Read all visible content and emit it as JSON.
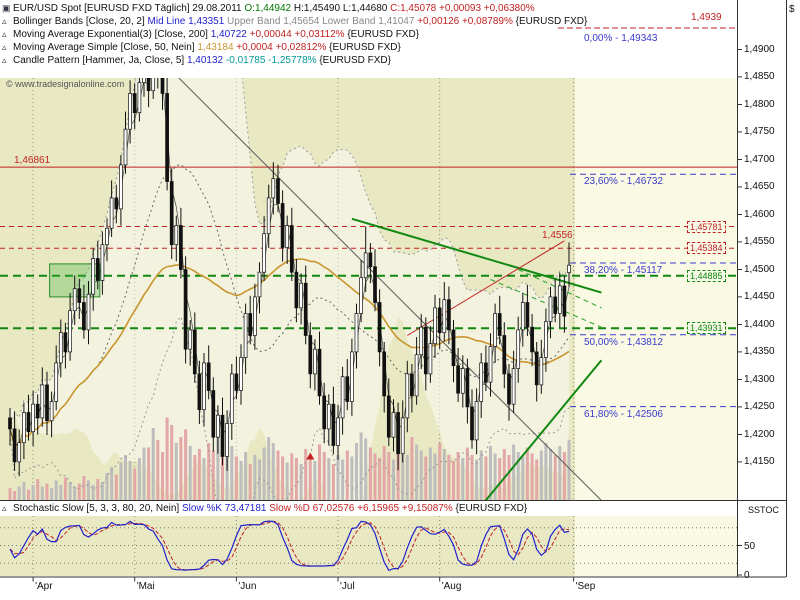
{
  "header": {
    "copyright": "© www.tradesignalonline.com",
    "legend_rows": [
      {
        "name": "instrument",
        "icon": "instrument-icon",
        "segments": [
          {
            "t": "EUR/USD Spot [EURUSD FXD Täglich] 29.08.2011 ",
            "c": "k"
          },
          {
            "t": "O:1,44942 ",
            "c": "g"
          },
          {
            "t": "H:1,45490 ",
            "c": "k"
          },
          {
            "t": "L:1,44680 ",
            "c": "k"
          },
          {
            "t": "C:1,45078 ",
            "c": "r"
          },
          {
            "t": "+0,00093 +0,06380%",
            "c": "r"
          }
        ]
      },
      {
        "name": "bollinger-bands",
        "icon": "indicator-icon",
        "segments": [
          {
            "t": "Bollinger Bands [Close, 20, 2] ",
            "c": "k"
          },
          {
            "t": "Mid Line 1,43351 ",
            "c": "b"
          },
          {
            "t": "Upper Band 1,45654 ",
            "c": "gy"
          },
          {
            "t": "Lower Band 1,41047 ",
            "c": "gy"
          },
          {
            "t": "+0,00126 +0,08789% ",
            "c": "r"
          },
          {
            "t": "{EURUSD FXD}",
            "c": "k"
          }
        ]
      },
      {
        "name": "ma-exponential",
        "icon": "indicator-icon",
        "segments": [
          {
            "t": "Moving Average Exponential(3) [Close, 200] ",
            "c": "k"
          },
          {
            "t": "1,40722 ",
            "c": "b"
          },
          {
            "t": "+0,00044 +0,03112% ",
            "c": "r"
          },
          {
            "t": "{EURUSD FXD}",
            "c": "k"
          }
        ]
      },
      {
        "name": "ma-simple",
        "icon": "indicator-icon",
        "segments": [
          {
            "t": "Moving Average Simple [Close, 50, Nein] ",
            "c": "k"
          },
          {
            "t": "1,43184 ",
            "c": "o"
          },
          {
            "t": "+0,0004 +0,02812% ",
            "c": "r"
          },
          {
            "t": "{EURUSD FXD}",
            "c": "k"
          }
        ]
      },
      {
        "name": "candle-pattern",
        "icon": "indicator-icon",
        "segments": [
          {
            "t": "Candle Pattern [Hammer, Ja, Close, 5] ",
            "c": "k"
          },
          {
            "t": "1,40132 ",
            "c": "b"
          },
          {
            "t": "-0,01785 -1,25778% ",
            "c": "t"
          },
          {
            "t": "{EURUSD FXD}",
            "c": "k"
          }
        ]
      }
    ],
    "stoch_legend": {
      "name": "stochastic",
      "icon": "indicator-icon",
      "segments": [
        {
          "t": "Stochastic Slow [5, 3, 3, 80, 20, Nein] ",
          "c": "k"
        },
        {
          "t": "Slow %K 73,47181 ",
          "c": "b"
        },
        {
          "t": "Slow %D 67,02576 ",
          "c": "r"
        },
        {
          "t": "+6,15965 +9,15087% ",
          "c": "r"
        },
        {
          "t": "{EURUSD FXD}",
          "c": "k"
        }
      ]
    }
  },
  "axes": {
    "currency_symbol": "$",
    "stoch_title": "SSTOC",
    "price_labels": [
      "1,4900",
      "1,4850",
      "1,4800",
      "1,4750",
      "1,4700",
      "1,4650",
      "1,4600",
      "1,4550",
      "1,4500",
      "1,4450",
      "1,4400",
      "1,4350",
      "1,4300",
      "1,4250",
      "1,4200",
      "1,4150"
    ],
    "stoch_labels": [
      {
        "t": "50",
        "v": 50
      },
      {
        "t": "0",
        "v": 0
      }
    ],
    "stoch_levels": [
      80,
      50,
      20
    ],
    "months": [
      {
        "label": "'Apr",
        "day": 5
      },
      {
        "label": "'Mai",
        "day": 27
      },
      {
        "label": "'Jun",
        "day": 49
      },
      {
        "label": "'Jul",
        "day": 71
      },
      {
        "label": "'Aug",
        "day": 93
      },
      {
        "label": "'Sep",
        "day": 122
      }
    ]
  },
  "levels": {
    "top": {
      "label": "1,4939",
      "price": 1.4939
    },
    "solid": {
      "label": "1,46861",
      "price": 1.46861
    },
    "dashed_red": [
      {
        "label": "1,45781",
        "price": 1.45781
      },
      {
        "label": "1,45384",
        "price": 1.45384
      }
    ],
    "dashed_green": [
      {
        "label": "1,44885",
        "price": 1.44885
      },
      {
        "label": "1,43931",
        "price": 1.43931
      }
    ],
    "floating": {
      "label": "1,4556",
      "price": 1.4556
    }
  },
  "fibonacci": [
    {
      "label": "0,00% - 1,49343",
      "price": 1.49343,
      "line": false
    },
    {
      "label": "23,60% - 1,46732",
      "price": 1.46732,
      "line": true
    },
    {
      "label": "38,20% - 1,45117",
      "price": 1.45117,
      "line": true
    },
    {
      "label": "50,00% - 1,43812",
      "price": 1.43812,
      "line": true
    },
    {
      "label": "61,80% - 1,42506",
      "price": 1.42506,
      "line": true
    }
  ],
  "colors": {
    "background": "#e8e8c3",
    "future_zone": "#f9f9e4",
    "up_candle": "#ffffff",
    "down_candle": "#111111",
    "candle_line": "#111111",
    "volume_up": "#bdbdbd",
    "volume_down": "#e3a7a7",
    "bollinger": "#9a9a9a",
    "bollinger_mid": "#666666",
    "sma50": "#c9952e",
    "ema": "#444444",
    "support": "#118811",
    "resistance": "#c22222",
    "fib": "#3a3acc",
    "stoch_k": "#2222cc",
    "stoch_d": "#c22222",
    "frame": "#333333"
  },
  "chart_data": {
    "type": "candlestick",
    "title": "EUR/USD Spot [EURUSD FXD Täglich]",
    "date": "29.08.2011",
    "ohlc_last": {
      "open": 1.44942,
      "high": 1.4549,
      "low": 1.4468,
      "close": 1.45078,
      "change": "+0,00093",
      "change_pct": "+0,06380%"
    },
    "y_axis": {
      "min": 1.415,
      "max": 1.4939
    },
    "candles": [
      [
        1.423,
        1.4248,
        1.418,
        1.421
      ],
      [
        1.421,
        1.4242,
        1.4134,
        1.415
      ],
      [
        1.415,
        1.4209,
        1.4124,
        1.4185
      ],
      [
        1.4185,
        1.4258,
        1.4155,
        1.424
      ],
      [
        1.424,
        1.4272,
        1.4189,
        1.4205
      ],
      [
        1.4205,
        1.4279,
        1.4179,
        1.4255
      ],
      [
        1.4255,
        1.4273,
        1.42,
        1.423
      ],
      [
        1.423,
        1.4322,
        1.4214,
        1.429
      ],
      [
        1.429,
        1.4314,
        1.4199,
        1.4225
      ],
      [
        1.4225,
        1.4278,
        1.4195,
        1.426
      ],
      [
        1.426,
        1.4362,
        1.4244,
        1.433
      ],
      [
        1.433,
        1.4409,
        1.4304,
        1.4385
      ],
      [
        1.4385,
        1.4403,
        1.432,
        1.435
      ],
      [
        1.435,
        1.4457,
        1.4334,
        1.4425
      ],
      [
        1.4425,
        1.4489,
        1.4399,
        1.4465
      ],
      [
        1.4465,
        1.4483,
        1.441,
        1.444
      ],
      [
        1.444,
        1.4472,
        1.4374,
        1.439
      ],
      [
        1.439,
        1.4479,
        1.4364,
        1.4455
      ],
      [
        1.4455,
        1.4538,
        1.4425,
        1.452
      ],
      [
        1.452,
        1.4552,
        1.4464,
        1.448
      ],
      [
        1.448,
        1.4569,
        1.4454,
        1.4545
      ],
      [
        1.4545,
        1.4593,
        1.4515,
        1.4575
      ],
      [
        1.4575,
        1.4662,
        1.4559,
        1.463
      ],
      [
        1.463,
        1.4654,
        1.4584,
        1.461
      ],
      [
        1.461,
        1.4708,
        1.458,
        1.469
      ],
      [
        1.469,
        1.4787,
        1.4674,
        1.4755
      ],
      [
        1.4755,
        1.4844,
        1.4729,
        1.482
      ],
      [
        1.482,
        1.4838,
        1.4755,
        1.4785
      ],
      [
        1.4785,
        1.4872,
        1.4769,
        1.484
      ],
      [
        1.484,
        1.4904,
        1.4814,
        1.488
      ],
      [
        1.488,
        1.4898,
        1.4795,
        1.4825
      ],
      [
        1.4825,
        1.4939,
        1.481,
        1.49
      ],
      [
        1.49,
        1.4924,
        1.4829,
        1.4855
      ],
      [
        1.4855,
        1.4873,
        1.479,
        1.482
      ],
      [
        1.482,
        1.4852,
        1.4644,
        1.466
      ],
      [
        1.466,
        1.4684,
        1.4519,
        1.4545
      ],
      [
        1.4545,
        1.4598,
        1.4515,
        1.458
      ],
      [
        1.458,
        1.4612,
        1.4484,
        1.45
      ],
      [
        1.45,
        1.4524,
        1.4329,
        1.4355
      ],
      [
        1.4355,
        1.4408,
        1.4325,
        1.439
      ],
      [
        1.439,
        1.4422,
        1.4294,
        1.431
      ],
      [
        1.431,
        1.4334,
        1.4219,
        1.4245
      ],
      [
        1.4245,
        1.4348,
        1.4215,
        1.433
      ],
      [
        1.433,
        1.4362,
        1.4264,
        1.428
      ],
      [
        1.428,
        1.4304,
        1.4169,
        1.4195
      ],
      [
        1.4195,
        1.4253,
        1.4165,
        1.4235
      ],
      [
        1.4235,
        1.4267,
        1.4144,
        1.416
      ],
      [
        1.416,
        1.4244,
        1.4134,
        1.422
      ],
      [
        1.422,
        1.4328,
        1.419,
        1.431
      ],
      [
        1.431,
        1.4342,
        1.4264,
        1.428
      ],
      [
        1.428,
        1.4364,
        1.4254,
        1.434
      ],
      [
        1.434,
        1.4438,
        1.431,
        1.442
      ],
      [
        1.442,
        1.4452,
        1.4364,
        1.438
      ],
      [
        1.438,
        1.4474,
        1.4354,
        1.445
      ],
      [
        1.445,
        1.4513,
        1.442,
        1.4495
      ],
      [
        1.4495,
        1.4597,
        1.4479,
        1.4565
      ],
      [
        1.4565,
        1.4654,
        1.4539,
        1.463
      ],
      [
        1.463,
        1.4695,
        1.46,
        1.4665
      ],
      [
        1.4665,
        1.469,
        1.4604,
        1.462
      ],
      [
        1.462,
        1.4644,
        1.4514,
        1.454
      ],
      [
        1.454,
        1.4598,
        1.451,
        1.458
      ],
      [
        1.458,
        1.4612,
        1.4479,
        1.4495
      ],
      [
        1.4495,
        1.4519,
        1.4404,
        1.443
      ],
      [
        1.443,
        1.4493,
        1.44,
        1.4475
      ],
      [
        1.4475,
        1.4507,
        1.4364,
        1.438
      ],
      [
        1.438,
        1.4404,
        1.4284,
        1.431
      ],
      [
        1.431,
        1.4373,
        1.428,
        1.4355
      ],
      [
        1.4355,
        1.4387,
        1.4254,
        1.427
      ],
      [
        1.427,
        1.4294,
        1.4184,
        1.421
      ],
      [
        1.421,
        1.4273,
        1.418,
        1.4255
      ],
      [
        1.4255,
        1.4287,
        1.4164,
        1.418
      ],
      [
        1.418,
        1.4254,
        1.4154,
        1.423
      ],
      [
        1.423,
        1.4323,
        1.42,
        1.4305
      ],
      [
        1.4305,
        1.4337,
        1.4244,
        1.426
      ],
      [
        1.426,
        1.4374,
        1.4234,
        1.435
      ],
      [
        1.435,
        1.4438,
        1.432,
        1.442
      ],
      [
        1.442,
        1.4517,
        1.4404,
        1.4485
      ],
      [
        1.4485,
        1.4578,
        1.4459,
        1.453
      ],
      [
        1.453,
        1.4548,
        1.4475,
        1.4505
      ],
      [
        1.4505,
        1.4537,
        1.4424,
        1.444
      ],
      [
        1.444,
        1.4464,
        1.4324,
        1.435
      ],
      [
        1.435,
        1.4368,
        1.424,
        1.427
      ],
      [
        1.427,
        1.4302,
        1.4179,
        1.4195
      ],
      [
        1.4195,
        1.4264,
        1.4169,
        1.424
      ],
      [
        1.424,
        1.4258,
        1.4135,
        1.4165
      ],
      [
        1.4165,
        1.4262,
        1.4149,
        1.423
      ],
      [
        1.423,
        1.4334,
        1.4204,
        1.431
      ],
      [
        1.431,
        1.4328,
        1.424,
        1.427
      ],
      [
        1.427,
        1.4377,
        1.4254,
        1.4345
      ],
      [
        1.4345,
        1.4419,
        1.4319,
        1.4395
      ],
      [
        1.4395,
        1.4413,
        1.428,
        1.431
      ],
      [
        1.431,
        1.4397,
        1.4294,
        1.4365
      ],
      [
        1.4365,
        1.4454,
        1.4339,
        1.443
      ],
      [
        1.443,
        1.4448,
        1.4355,
        1.4385
      ],
      [
        1.4385,
        1.4477,
        1.4369,
        1.4445
      ],
      [
        1.4445,
        1.4469,
        1.4364,
        1.439
      ],
      [
        1.439,
        1.4408,
        1.4295,
        1.4325
      ],
      [
        1.4325,
        1.4357,
        1.4259,
        1.4275
      ],
      [
        1.4275,
        1.4344,
        1.4249,
        1.432
      ],
      [
        1.432,
        1.4338,
        1.422,
        1.425
      ],
      [
        1.425,
        1.4282,
        1.4174,
        1.419
      ],
      [
        1.419,
        1.4284,
        1.4164,
        1.426
      ],
      [
        1.426,
        1.4348,
        1.423,
        1.433
      ],
      [
        1.433,
        1.4362,
        1.4279,
        1.4295
      ],
      [
        1.4295,
        1.4384,
        1.4269,
        1.436
      ],
      [
        1.436,
        1.4438,
        1.433,
        1.442
      ],
      [
        1.442,
        1.4452,
        1.4364,
        1.438
      ],
      [
        1.438,
        1.4404,
        1.4284,
        1.431
      ],
      [
        1.431,
        1.4328,
        1.4225,
        1.4255
      ],
      [
        1.4255,
        1.4352,
        1.4239,
        1.432
      ],
      [
        1.432,
        1.4414,
        1.4294,
        1.439
      ],
      [
        1.439,
        1.4458,
        1.436,
        1.444
      ],
      [
        1.444,
        1.4472,
        1.4379,
        1.4395
      ],
      [
        1.4395,
        1.4419,
        1.4324,
        1.435
      ],
      [
        1.435,
        1.4368,
        1.426,
        1.429
      ],
      [
        1.429,
        1.4372,
        1.4274,
        1.434
      ],
      [
        1.434,
        1.4429,
        1.4314,
        1.4405
      ],
      [
        1.4405,
        1.4468,
        1.4375,
        1.445
      ],
      [
        1.445,
        1.4482,
        1.4404,
        1.442
      ],
      [
        1.442,
        1.4494,
        1.4394,
        1.447
      ],
      [
        1.447,
        1.4488,
        1.4385,
        1.4415
      ],
      [
        1.44942,
        1.4549,
        1.4468,
        1.45078
      ]
    ],
    "volumes": [
      8,
      6,
      9,
      12,
      7,
      10,
      14,
      9,
      11,
      8,
      13,
      10,
      15,
      12,
      9,
      11,
      16,
      13,
      10,
      14,
      12,
      18,
      22,
      17,
      25,
      30,
      26,
      21,
      28,
      35,
      35,
      48,
      40,
      32,
      55,
      50,
      38,
      42,
      47,
      36,
      30,
      34,
      28,
      38,
      33,
      45,
      40,
      31,
      36,
      29,
      26,
      32,
      24,
      30,
      27,
      35,
      42,
      38,
      33,
      29,
      25,
      31,
      28,
      24,
      34,
      30,
      26,
      37,
      32,
      28,
      24,
      30,
      27,
      33,
      29,
      38,
      45,
      41,
      35,
      31,
      28,
      36,
      32,
      27,
      39,
      34,
      30,
      42,
      37,
      33,
      29,
      35,
      31,
      38,
      34,
      30,
      26,
      32,
      28,
      35,
      30,
      27,
      33,
      29,
      36,
      31,
      28,
      34,
      30,
      37,
      32,
      29,
      35,
      31,
      27,
      33,
      38,
      34,
      30,
      36,
      32,
      40
    ],
    "trendlines": [
      {
        "name": "down-trendline",
        "color": "#555555",
        "width": 1,
        "dash": "",
        "points": [
          [
            28,
            1.492
          ],
          [
            128,
            1.408
          ]
        ]
      },
      {
        "name": "green-resistance",
        "color": "#118811",
        "width": 2,
        "dash": "",
        "points": [
          [
            74,
            1.4592
          ],
          [
            128,
            1.4458
          ]
        ]
      },
      {
        "name": "green-support-rising",
        "color": "#118811",
        "width": 2,
        "dash": "",
        "points": [
          [
            102,
            1.407
          ],
          [
            128,
            1.4335
          ]
        ]
      },
      {
        "name": "green-channel-dash-a",
        "color": "#22a022",
        "width": 1,
        "dash": "5 4",
        "points": [
          [
            104,
            1.4482
          ],
          [
            128,
            1.4395
          ]
        ]
      },
      {
        "name": "green-channel-dash-b",
        "color": "#22a022",
        "width": 1,
        "dash": "5 4",
        "points": [
          [
            110,
            1.45
          ],
          [
            128,
            1.443
          ]
        ]
      },
      {
        "name": "red-rising",
        "color": "#c22222",
        "width": 1,
        "dash": "",
        "points": [
          [
            86,
            1.438
          ],
          [
            120,
            1.4552
          ]
        ]
      }
    ],
    "marker": {
      "type": "hammer-triangle",
      "day": 65,
      "price": 1.416,
      "color": "#c22222"
    },
    "highlight_box": {
      "day_start": 9,
      "day_end": 19,
      "price_low": 1.445,
      "price_high": 1.451
    },
    "stochastic": {
      "params": [
        5,
        3,
        3,
        80,
        20
      ],
      "slow_k": 73.47181,
      "slow_d": 67.02576
    }
  }
}
